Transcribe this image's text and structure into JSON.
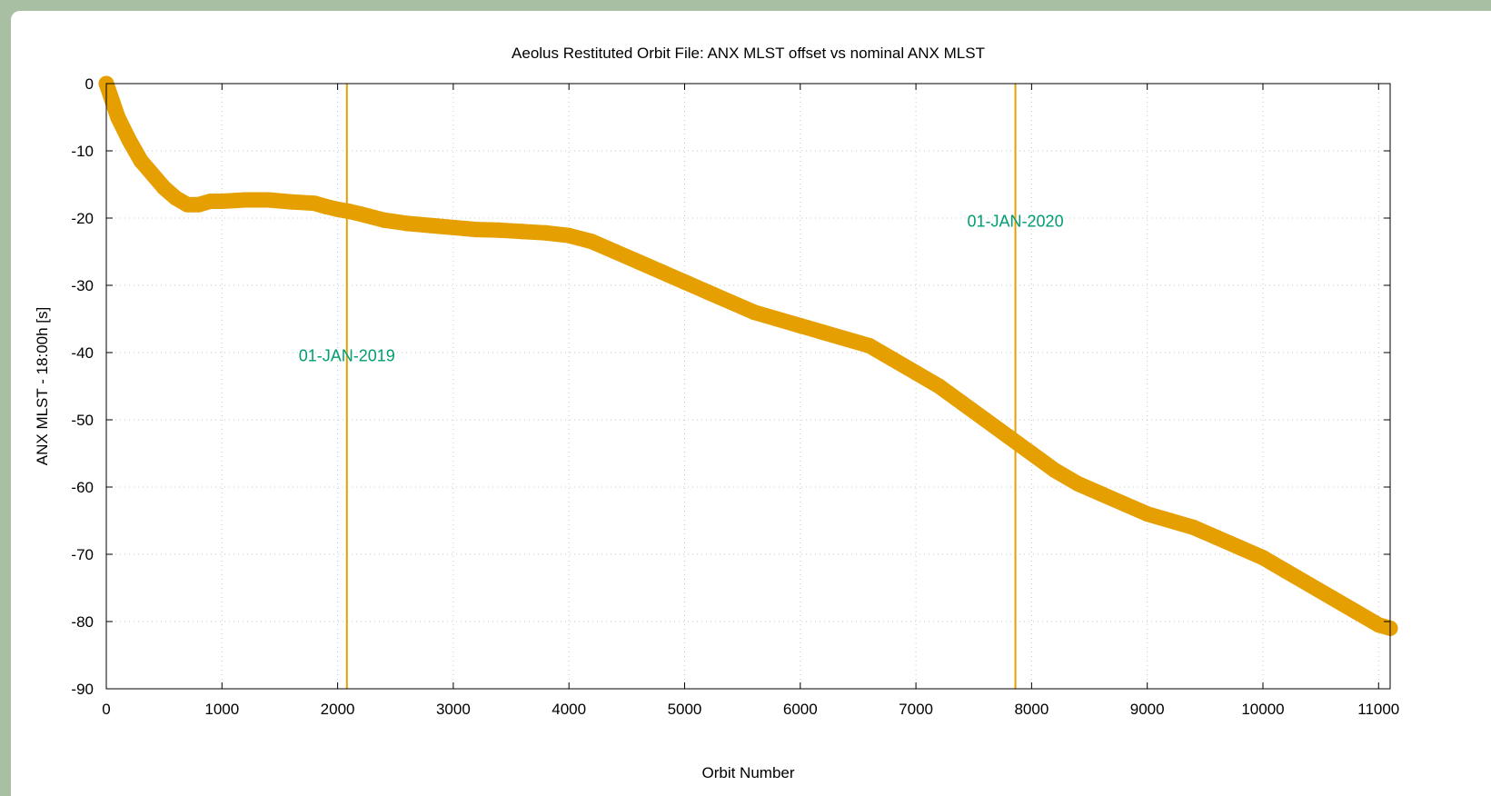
{
  "chart_data": {
    "type": "scatter",
    "title": "Aeolus Restituted Orbit File: ANX MLST offset vs nominal ANX MLST",
    "xlabel": "Orbit Number",
    "ylabel": "ANX MLST - 18:00h [s]",
    "xlim": [
      0,
      11100
    ],
    "ylim": [
      -90,
      0
    ],
    "xticks": [
      0,
      1000,
      2000,
      3000,
      4000,
      5000,
      6000,
      7000,
      8000,
      9000,
      10000,
      11000
    ],
    "yticks": [
      0,
      -10,
      -20,
      -30,
      -40,
      -50,
      -60,
      -70,
      -80,
      -90
    ],
    "grid": true,
    "series": [
      {
        "color": "#e69f00",
        "x": [
          0,
          50,
          100,
          200,
          300,
          400,
          500,
          600,
          700,
          800,
          900,
          1000,
          1200,
          1400,
          1600,
          1800,
          1900,
          2000,
          2100,
          2200,
          2400,
          2600,
          2800,
          3000,
          3200,
          3400,
          3600,
          3800,
          4000,
          4200,
          4400,
          4600,
          4800,
          5000,
          5200,
          5400,
          5600,
          5800,
          6000,
          6200,
          6400,
          6600,
          6800,
          7000,
          7200,
          7400,
          7600,
          7800,
          8000,
          8200,
          8400,
          8600,
          8800,
          9000,
          9200,
          9400,
          9600,
          9800,
          10000,
          10200,
          10400,
          10600,
          10800,
          11000,
          11100
        ],
        "y": [
          0,
          -2.5,
          -5,
          -8.5,
          -11.5,
          -13.5,
          -15.5,
          -17,
          -18,
          -18,
          -17.5,
          -17.5,
          -17.3,
          -17.3,
          -17.6,
          -17.8,
          -18.3,
          -18.7,
          -19,
          -19.4,
          -20.3,
          -20.8,
          -21.1,
          -21.4,
          -21.7,
          -21.8,
          -22,
          -22.2,
          -22.6,
          -23.5,
          -25,
          -26.5,
          -28,
          -29.5,
          -31,
          -32.5,
          -34,
          -35,
          -36,
          -37,
          -38,
          -39,
          -41,
          -43,
          -45,
          -47.5,
          -50,
          -52.5,
          -55,
          -57.5,
          -59.5,
          -61,
          -62.5,
          -64,
          -65,
          -66,
          -67.5,
          -69,
          -70.5,
          -72.5,
          -74.5,
          -76.5,
          -78.5,
          -80.5,
          -81
        ]
      }
    ],
    "reference_lines": [
      {
        "x": 2080,
        "label": "01-JAN-2019",
        "label_y": -40.5
      },
      {
        "x": 7860,
        "label": "01-JAN-2020",
        "label_y": -20.5
      }
    ],
    "colors": {
      "series": "#e69f00",
      "reference_line": "#e69f00",
      "annotation": "#009e73",
      "background": "#a9bfa3"
    }
  }
}
